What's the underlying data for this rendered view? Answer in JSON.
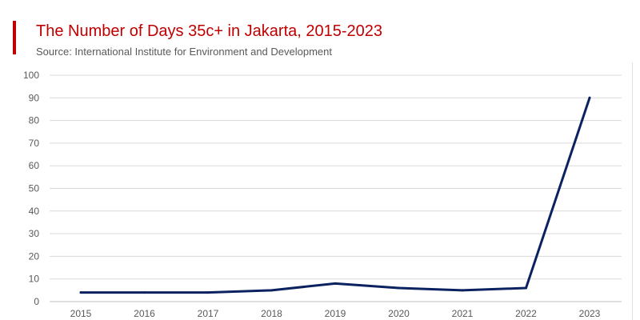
{
  "header": {
    "title": "The Number of Days 35c+ in Jakarta, 2015-2023",
    "source": "Source: International Institute for Environment and Development"
  },
  "colors": {
    "accent": "#c00000",
    "line": "#0b2260",
    "grid": "#d9d9d9",
    "text": "#595959"
  },
  "chart_data": {
    "type": "line",
    "title": "The Number of Days 35c+ in Jakarta, 2015-2023",
    "subtitle": "Source: International Institute for Environment and Development",
    "categories": [
      "2015",
      "2016",
      "2017",
      "2018",
      "2019",
      "2020",
      "2021",
      "2022",
      "2023"
    ],
    "series": [
      {
        "values": [
          4,
          4,
          4,
          5,
          8,
          6,
          5,
          6,
          90
        ]
      }
    ],
    "ylim": [
      0,
      100
    ],
    "yticks": [
      "0",
      "10",
      "20",
      "30",
      "40",
      "50",
      "60",
      "70",
      "80",
      "90",
      "100"
    ],
    "grid": "horizontal",
    "legend": "none"
  }
}
